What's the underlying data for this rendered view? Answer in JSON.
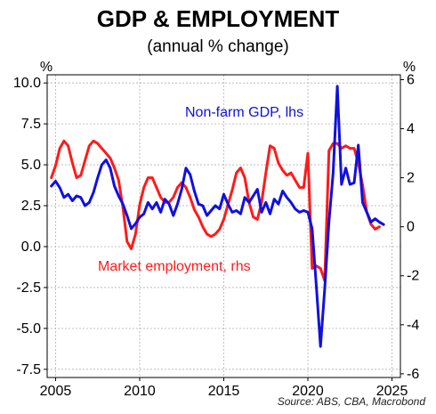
{
  "chart_data": {
    "type": "line",
    "title": "GDP & EMPLOYMENT",
    "subtitle": "(annual % change)",
    "source": "Source: ABS, CBA, Macrobond",
    "left_axis": {
      "unit": "%",
      "ylim": [
        -8,
        10.5
      ],
      "ticks": [
        "10.0",
        "7.5",
        "5.0",
        "2.5",
        "0.0",
        "-2.5",
        "-5.0",
        "-7.5"
      ],
      "tick_values": [
        10,
        7.5,
        5,
        2.5,
        0,
        -2.5,
        -5,
        -7.5
      ]
    },
    "right_axis": {
      "unit": "%",
      "ylim": [
        -6.15,
        6.2
      ],
      "ticks": [
        "6",
        "4",
        "2",
        "0",
        "-2",
        "-4",
        "-6"
      ],
      "tick_values": [
        6,
        4,
        2,
        0,
        -2,
        -4,
        -6
      ]
    },
    "x_axis": {
      "xlim": [
        2004.5,
        2025.5
      ],
      "ticks": [
        "2005",
        "2010",
        "2015",
        "2020",
        "2025"
      ],
      "tick_values": [
        2005,
        2010,
        2015,
        2020,
        2025
      ]
    },
    "grid": true,
    "series": [
      {
        "name": "Non-farm GDP, lhs",
        "axis": "left",
        "color": "#1010e0",
        "points": [
          [
            2004.75,
            3.7
          ],
          [
            2005.0,
            4.0
          ],
          [
            2005.25,
            3.6
          ],
          [
            2005.5,
            3.0
          ],
          [
            2005.75,
            3.2
          ],
          [
            2006.0,
            2.8
          ],
          [
            2006.25,
            3.1
          ],
          [
            2006.5,
            3.0
          ],
          [
            2006.75,
            2.5
          ],
          [
            2007.0,
            2.7
          ],
          [
            2007.25,
            3.3
          ],
          [
            2007.5,
            4.2
          ],
          [
            2007.75,
            5.0
          ],
          [
            2008.0,
            5.3
          ],
          [
            2008.25,
            4.8
          ],
          [
            2008.5,
            3.7
          ],
          [
            2008.75,
            3.1
          ],
          [
            2009.0,
            2.6
          ],
          [
            2009.25,
            1.9
          ],
          [
            2009.5,
            1.1
          ],
          [
            2009.75,
            1.4
          ],
          [
            2010.0,
            1.8
          ],
          [
            2010.25,
            2.0
          ],
          [
            2010.5,
            2.7
          ],
          [
            2010.75,
            2.3
          ],
          [
            2011.0,
            2.7
          ],
          [
            2011.25,
            2.1
          ],
          [
            2011.5,
            2.9
          ],
          [
            2011.75,
            2.6
          ],
          [
            2012.0,
            1.9
          ],
          [
            2012.25,
            2.6
          ],
          [
            2012.5,
            3.5
          ],
          [
            2012.75,
            4.8
          ],
          [
            2013.0,
            4.4
          ],
          [
            2013.25,
            3.4
          ],
          [
            2013.5,
            2.6
          ],
          [
            2013.75,
            2.5
          ],
          [
            2014.0,
            1.9
          ],
          [
            2014.25,
            2.2
          ],
          [
            2014.5,
            2.5
          ],
          [
            2014.75,
            2.3
          ],
          [
            2015.0,
            3.2
          ],
          [
            2015.25,
            2.6
          ],
          [
            2015.5,
            2.1
          ],
          [
            2015.75,
            2.2
          ],
          [
            2016.0,
            2.0
          ],
          [
            2016.25,
            3.0
          ],
          [
            2016.5,
            2.7
          ],
          [
            2016.75,
            3.1
          ],
          [
            2017.0,
            3.5
          ],
          [
            2017.25,
            2.1
          ],
          [
            2017.5,
            2.7
          ],
          [
            2017.75,
            2.0
          ],
          [
            2018.0,
            2.9
          ],
          [
            2018.25,
            2.6
          ],
          [
            2018.5,
            3.4
          ],
          [
            2018.75,
            3.0
          ],
          [
            2019.0,
            2.7
          ],
          [
            2019.25,
            2.3
          ],
          [
            2019.5,
            2.1
          ],
          [
            2019.75,
            2.2
          ],
          [
            2020.0,
            2.1
          ],
          [
            2020.25,
            1.1
          ],
          [
            2020.5,
            -2.4
          ],
          [
            2020.75,
            -6.1
          ],
          [
            2021.0,
            -2.6
          ],
          [
            2021.25,
            1.5
          ],
          [
            2021.5,
            4.5
          ],
          [
            2021.75,
            9.8
          ],
          [
            2022.0,
            3.8
          ],
          [
            2022.25,
            4.8
          ],
          [
            2022.5,
            3.8
          ],
          [
            2022.75,
            3.9
          ],
          [
            2023.0,
            6.2
          ],
          [
            2023.25,
            2.7
          ],
          [
            2023.5,
            2.1
          ],
          [
            2023.75,
            1.5
          ],
          [
            2024.0,
            1.7
          ],
          [
            2024.25,
            1.5
          ],
          [
            2024.5,
            1.35
          ]
        ]
      },
      {
        "name": "Market employment, rhs",
        "axis": "right",
        "color": "#ff1a1a",
        "points": [
          [
            2004.75,
            2.0
          ],
          [
            2005.0,
            2.5
          ],
          [
            2005.25,
            3.2
          ],
          [
            2005.5,
            3.5
          ],
          [
            2005.75,
            3.3
          ],
          [
            2006.0,
            2.6
          ],
          [
            2006.25,
            2.0
          ],
          [
            2006.5,
            2.1
          ],
          [
            2006.75,
            2.7
          ],
          [
            2007.0,
            3.3
          ],
          [
            2007.25,
            3.5
          ],
          [
            2007.5,
            3.4
          ],
          [
            2007.75,
            3.2
          ],
          [
            2008.0,
            3.0
          ],
          [
            2008.25,
            2.8
          ],
          [
            2008.5,
            2.4
          ],
          [
            2008.75,
            1.9
          ],
          [
            2009.0,
            0.8
          ],
          [
            2009.25,
            -0.6
          ],
          [
            2009.5,
            -0.9
          ],
          [
            2009.75,
            -0.3
          ],
          [
            2010.0,
            0.9
          ],
          [
            2010.25,
            1.6
          ],
          [
            2010.5,
            2.0
          ],
          [
            2010.75,
            2.0
          ],
          [
            2011.0,
            1.6
          ],
          [
            2011.25,
            1.2
          ],
          [
            2011.5,
            1.0
          ],
          [
            2011.75,
            1.0
          ],
          [
            2012.0,
            1.2
          ],
          [
            2012.25,
            1.6
          ],
          [
            2012.5,
            1.8
          ],
          [
            2012.75,
            1.6
          ],
          [
            2013.0,
            1.2
          ],
          [
            2013.25,
            0.7
          ],
          [
            2013.5,
            0.4
          ],
          [
            2013.75,
            0.0
          ],
          [
            2014.0,
            -0.3
          ],
          [
            2014.25,
            -0.4
          ],
          [
            2014.5,
            -0.3
          ],
          [
            2014.75,
            -0.1
          ],
          [
            2015.0,
            0.3
          ],
          [
            2015.25,
            0.9
          ],
          [
            2015.5,
            1.5
          ],
          [
            2015.75,
            2.2
          ],
          [
            2016.0,
            2.4
          ],
          [
            2016.25,
            2.0
          ],
          [
            2016.5,
            1.0
          ],
          [
            2016.75,
            0.4
          ],
          [
            2017.0,
            0.3
          ],
          [
            2017.25,
            1.0
          ],
          [
            2017.5,
            2.2
          ],
          [
            2017.75,
            3.3
          ],
          [
            2018.0,
            3.2
          ],
          [
            2018.25,
            2.6
          ],
          [
            2018.5,
            2.3
          ],
          [
            2018.75,
            2.1
          ],
          [
            2019.0,
            2.2
          ],
          [
            2019.25,
            1.9
          ],
          [
            2019.5,
            1.6
          ],
          [
            2019.75,
            1.6
          ],
          [
            2020.0,
            3.0
          ],
          [
            2020.25,
            -1.7
          ],
          [
            2020.5,
            -1.6
          ],
          [
            2020.75,
            -1.7
          ],
          [
            2021.0,
            -2.2
          ],
          [
            2021.25,
            3.1
          ],
          [
            2021.5,
            3.4
          ],
          [
            2021.75,
            3.4
          ],
          [
            2022.0,
            3.2
          ],
          [
            2022.25,
            3.3
          ],
          [
            2022.5,
            3.2
          ],
          [
            2022.75,
            3.2
          ],
          [
            2023.0,
            2.6
          ],
          [
            2023.25,
            1.7
          ],
          [
            2023.5,
            0.6
          ],
          [
            2023.75,
            0.1
          ],
          [
            2024.0,
            -0.1
          ],
          [
            2024.25,
            0.0
          ]
        ]
      }
    ],
    "annotations": [
      {
        "text": "Non-farm GDP, lhs",
        "series": 0
      },
      {
        "text": "Market employment, rhs",
        "series": 1
      }
    ]
  }
}
